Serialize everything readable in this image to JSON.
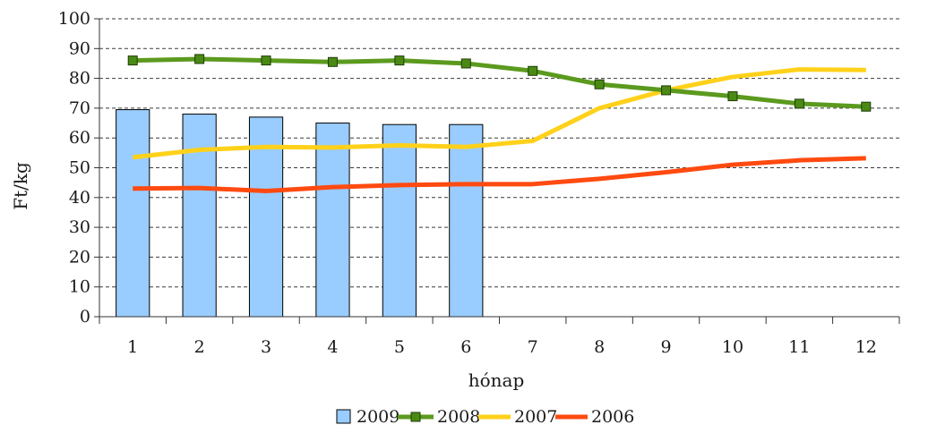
{
  "chart_data": {
    "type": "bar",
    "title": "",
    "xlabel": "hónap",
    "ylabel": "Ft/kg",
    "categories": [
      "1",
      "2",
      "3",
      "4",
      "5",
      "6",
      "7",
      "8",
      "9",
      "10",
      "11",
      "12"
    ],
    "ylim": [
      0,
      100
    ],
    "yticks": [
      "0",
      "10",
      "20",
      "30",
      "40",
      "50",
      "60",
      "70",
      "80",
      "90",
      "100"
    ],
    "grid": "horizontal dashed",
    "legend_position": "bottom",
    "series": [
      {
        "name": "2009",
        "kind": "bar",
        "color": "#99ccff",
        "values": [
          69.5,
          68,
          67,
          65,
          64.5,
          64.5,
          null,
          null,
          null,
          null,
          null,
          null
        ]
      },
      {
        "name": "2008",
        "kind": "line-marker",
        "color": "#5b9a1e",
        "marker_color": "#4a8a14",
        "values": [
          86,
          86.5,
          86,
          85.5,
          86,
          85,
          82.5,
          78,
          76,
          74,
          71.5,
          70.5
        ]
      },
      {
        "name": "2007",
        "kind": "line",
        "color": "#ffd11a",
        "values": [
          53.5,
          56,
          57,
          56.8,
          57.5,
          57,
          59,
          70,
          76,
          80.5,
          83,
          82.8
        ]
      },
      {
        "name": "2006",
        "kind": "line",
        "color": "#ff4a10",
        "values": [
          43,
          43.2,
          42.2,
          43.5,
          44.2,
          44.5,
          44.5,
          46.3,
          48.5,
          51,
          52.5,
          53.2
        ]
      }
    ]
  }
}
